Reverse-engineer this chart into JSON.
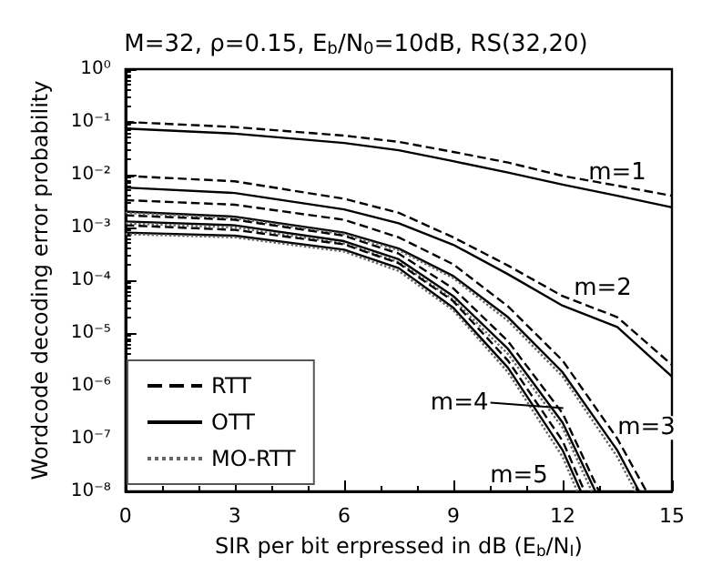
{
  "chart_data": {
    "type": "line",
    "title": "M=32, ρ=0.15, E$_{b}$/N$_{0}$=10dB, RS(32,20)",
    "xlabel": "SIR per bit erpressed in dB (E$_{b}$/N$_{I}$)",
    "ylabel": "Wordcode decoding error probability",
    "log": "y",
    "xlim": [
      0,
      15
    ],
    "xticks": [
      0,
      3,
      6,
      9,
      12,
      15
    ],
    "ylim": [
      1e-08,
      1
    ],
    "yticks": [
      {
        "value": 1e-08,
        "label": "10⁻⁸"
      },
      {
        "value": 1e-07,
        "label": "10⁻⁷"
      },
      {
        "value": 1e-06,
        "label": "10⁻⁶"
      },
      {
        "value": 1e-05,
        "label": "10⁻⁵"
      },
      {
        "value": 0.0001,
        "label": "10⁻⁴"
      },
      {
        "value": 0.001,
        "label": "10⁻³"
      },
      {
        "value": 0.01,
        "label": "10⁻²"
      },
      {
        "value": 0.1,
        "label": "10⁻¹"
      },
      {
        "value": 1,
        "label": "10⁰"
      }
    ],
    "grid": false,
    "legend": "bottom left",
    "marker": "none",
    "series": [
      {
        "name": "RTT",
        "color": "#000000",
        "line_style": "dashed",
        "x": [
          0,
          3,
          6,
          7.5,
          9,
          10.5,
          12,
          13.5,
          15
        ],
        "values": [
          0.1,
          0.08,
          0.055,
          0.042,
          0.027,
          0.017,
          0.0095,
          0.0062,
          0.004
        ]
      },
      {
        "name": "OTT",
        "color": "#000000",
        "line_style": "solid",
        "x": [
          0,
          3,
          6,
          7.5,
          9,
          10.5,
          12,
          13.5,
          15
        ],
        "values": [
          0.075,
          0.06,
          0.04,
          0.029,
          0.018,
          0.011,
          0.0065,
          0.004,
          0.0024
        ]
      },
      {
        "color": "#000000",
        "line_style": "dashed",
        "x": [
          0,
          3,
          6,
          7.5,
          9,
          10.5,
          12,
          13.5,
          15
        ],
        "values": [
          0.0095,
          0.0075,
          0.0035,
          0.0019,
          0.00065,
          0.00019,
          5e-05,
          2e-05,
          2.5e-06
        ]
      },
      {
        "color": "#000000",
        "line_style": "solid",
        "x": [
          0,
          3,
          6,
          7.5,
          9,
          10.5,
          12,
          13.5,
          15
        ],
        "values": [
          0.0057,
          0.0045,
          0.0022,
          0.0012,
          0.00047,
          0.00013,
          3.3e-05,
          1.3e-05,
          1.5e-06
        ]
      },
      {
        "color": "#000000",
        "line_style": "dashed",
        "x": [
          0,
          3,
          6,
          7.5,
          9,
          10.5,
          12,
          13.5,
          14.3
        ],
        "values": [
          0.0033,
          0.0027,
          0.0014,
          0.00065,
          0.0002,
          3.2e-05,
          3e-06,
          1e-07,
          1e-08
        ]
      },
      {
        "color": "#000000",
        "line_style": "solid",
        "x": [
          0,
          3,
          6,
          7.5,
          9,
          10.5,
          12,
          13.5,
          14.1
        ],
        "values": [
          0.002,
          0.0016,
          0.0008,
          0.0004,
          0.00012,
          2e-05,
          1.8e-06,
          6e-08,
          1e-08
        ]
      },
      {
        "name": "MO-RTT",
        "color": "#666666",
        "line_style": "dotted",
        "x": [
          0,
          3,
          6,
          7.5,
          9,
          10.5,
          12,
          13.5,
          14
        ],
        "values": [
          0.0019,
          0.0015,
          0.00075,
          0.00037,
          0.00011,
          1.7e-05,
          1.5e-06,
          4.5e-08,
          1e-08
        ]
      },
      {
        "color": "#000000",
        "line_style": "dashed",
        "x": [
          0,
          3,
          6,
          7.5,
          9,
          10.5,
          12,
          13
        ],
        "values": [
          0.0017,
          0.0014,
          0.0007,
          0.00032,
          7e-05,
          7e-06,
          3e-07,
          1e-08
        ]
      },
      {
        "color": "#000000",
        "line_style": "solid",
        "x": [
          0,
          3,
          6,
          7.5,
          9,
          10.5,
          12,
          12.9
        ],
        "values": [
          0.0013,
          0.0011,
          0.00055,
          0.00025,
          5e-05,
          5e-06,
          2e-07,
          1e-08
        ]
      },
      {
        "color": "#666666",
        "line_style": "dotted",
        "x": [
          0,
          3,
          6,
          7.5,
          9,
          10.5,
          12,
          12.8
        ],
        "values": [
          0.0012,
          0.001,
          0.0005,
          0.00022,
          4.3e-05,
          4e-06,
          1.6e-07,
          1e-08
        ]
      },
      {
        "color": "#000000",
        "line_style": "dashed",
        "x": [
          0,
          3,
          6,
          7.5,
          9,
          10.5,
          12,
          12.6
        ],
        "values": [
          0.0011,
          0.0009,
          0.00048,
          0.00021,
          4e-05,
          3e-06,
          9e-08,
          1e-08
        ]
      },
      {
        "color": "#000000",
        "line_style": "solid",
        "x": [
          0,
          3,
          6,
          7.5,
          9,
          10.5,
          12,
          12.5
        ],
        "values": [
          0.0008,
          0.0007,
          0.00038,
          0.00017,
          3e-05,
          2.2e-06,
          6e-08,
          1e-08
        ]
      },
      {
        "color": "#666666",
        "line_style": "dotted",
        "x": [
          0,
          3,
          6,
          7.5,
          9,
          10.5,
          12,
          12.4
        ],
        "values": [
          0.00075,
          0.00065,
          0.00035,
          0.00015,
          2.7e-05,
          1.8e-06,
          4.5e-08,
          1e-08
        ]
      }
    ],
    "annotations": [
      {
        "text": "m=1",
        "x": 13.5,
        "y": 0.011
      },
      {
        "text": "m=2",
        "x": 13.1,
        "y": 7e-05
      },
      {
        "text": "m=3",
        "x": 14.3,
        "y": 1.6e-07
      },
      "m=4",
      {
        "text": "m=5",
        "x": 10.8,
        "y": 2e-08
      }
    ]
  }
}
